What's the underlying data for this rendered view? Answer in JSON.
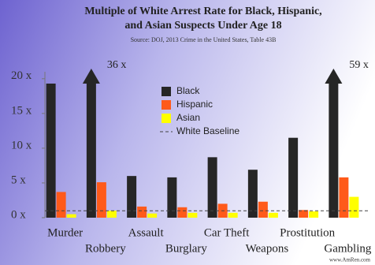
{
  "chart_data": {
    "type": "bar",
    "title": [
      "Multiple of White Arrest Rate for Black, Hispanic,",
      "and Asian Suspects Under Age 18"
    ],
    "subtitle": "Source: DOJ, 2013 Crime in the United States, Table 43B",
    "watermark": "www.AmRen.com",
    "categories": [
      "Murder",
      "Robbery",
      "Assault",
      "Burglary",
      "Car Theft",
      "Weapons",
      "Prostitution",
      "Gambling"
    ],
    "series": [
      {
        "name": "Black",
        "color": "#262626",
        "values": [
          19.3,
          36,
          6,
          5.8,
          8.7,
          6.9,
          11.5,
          59
        ],
        "value_labels": [
          null,
          "36 x",
          null,
          null,
          null,
          null,
          null,
          "59 x"
        ]
      },
      {
        "name": "Hispanic",
        "color": "#ff5a1a",
        "values": [
          3.7,
          5.1,
          1.6,
          1.5,
          2,
          2.3,
          1.1,
          5.8
        ]
      },
      {
        "name": "Asian",
        "color": "#ffff00",
        "values": [
          0.5,
          1,
          0.6,
          0.7,
          0.7,
          0.7,
          0.9,
          3
        ]
      }
    ],
    "baseline": {
      "name": "White Baseline",
      "value": 1
    },
    "ylim": [
      0,
      21
    ],
    "yticks": [
      {
        "value": 0,
        "label": "0 x"
      },
      {
        "value": 5,
        "label": "5 x"
      },
      {
        "value": 10,
        "label": "10 x"
      },
      {
        "value": 15,
        "label": "15 x"
      },
      {
        "value": 20,
        "label": "20 x"
      }
    ]
  }
}
